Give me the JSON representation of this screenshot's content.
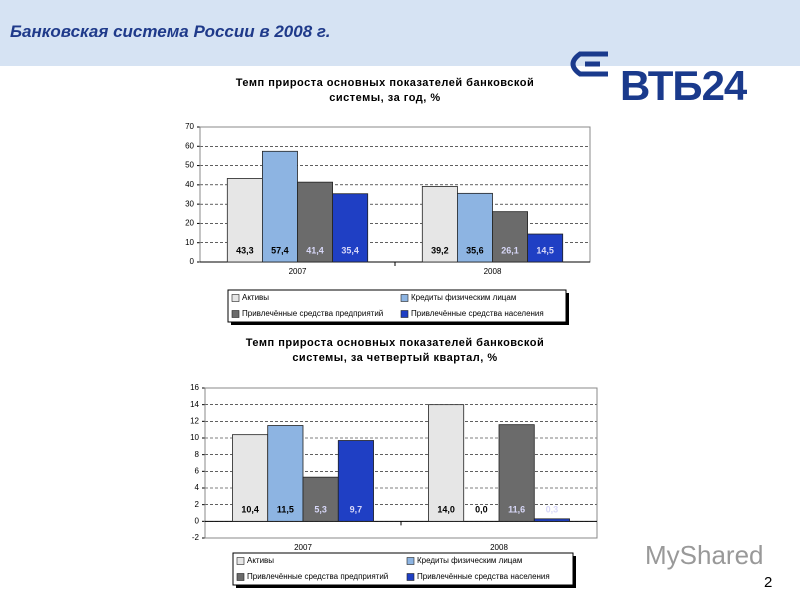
{
  "header": {
    "title": "Банковская система России в 2008 г."
  },
  "logo": "ВТБ24",
  "watermark": "MyShared",
  "page_number": "2",
  "chart_data": [
    {
      "type": "bar",
      "title": "Темп прироста основных показателей банковской системы, за год, %",
      "categories": [
        "2007",
        "2008"
      ],
      "series": [
        {
          "name": "Активы",
          "color": "#e6e6e6",
          "values": [
            43.3,
            39.2
          ],
          "value_labels": [
            "43,3",
            "39,2"
          ]
        },
        {
          "name": "Кредиты физическим лицам",
          "color": "#8db4e2",
          "values": [
            57.4,
            35.6
          ],
          "value_labels": [
            "57,4",
            "35,6"
          ]
        },
        {
          "name": "Привлечённые средства предприятий",
          "color": "#6b6b6b",
          "values": [
            41.4,
            26.1
          ],
          "value_labels": [
            "41,4",
            "26,1"
          ]
        },
        {
          "name": "Привлечённые средства населения",
          "color": "#1f3fc4",
          "values": [
            35.4,
            14.5
          ],
          "value_labels": [
            "35,4",
            "14,5"
          ]
        }
      ],
      "ylim": [
        0,
        70
      ],
      "yticks": [
        0,
        10,
        20,
        30,
        40,
        50,
        60,
        70
      ],
      "grid": true
    },
    {
      "type": "bar",
      "title": "Темп прироста основных показателей банковской системы, за четвертый квартал, %",
      "categories": [
        "2007",
        "2008"
      ],
      "series": [
        {
          "name": "Активы",
          "color": "#e6e6e6",
          "values": [
            10.4,
            14.0
          ],
          "value_labels": [
            "10,4",
            "14,0"
          ]
        },
        {
          "name": "Кредиты физическим лицам",
          "color": "#8db4e2",
          "values": [
            11.5,
            0.0
          ],
          "value_labels": [
            "11,5",
            "0,0"
          ]
        },
        {
          "name": "Привлечённые средства предприятий",
          "color": "#6b6b6b",
          "values": [
            5.3,
            11.6
          ],
          "value_labels": [
            "5,3",
            "11,6"
          ]
        },
        {
          "name": "Привлечённые средства населения",
          "color": "#1f3fc4",
          "values": [
            9.7,
            0.3
          ],
          "value_labels": [
            "9,7",
            "0,3"
          ]
        }
      ],
      "ylim": [
        -2,
        16
      ],
      "yticks": [
        -2,
        0,
        2,
        4,
        6,
        8,
        10,
        12,
        14,
        16
      ],
      "grid": true
    }
  ]
}
